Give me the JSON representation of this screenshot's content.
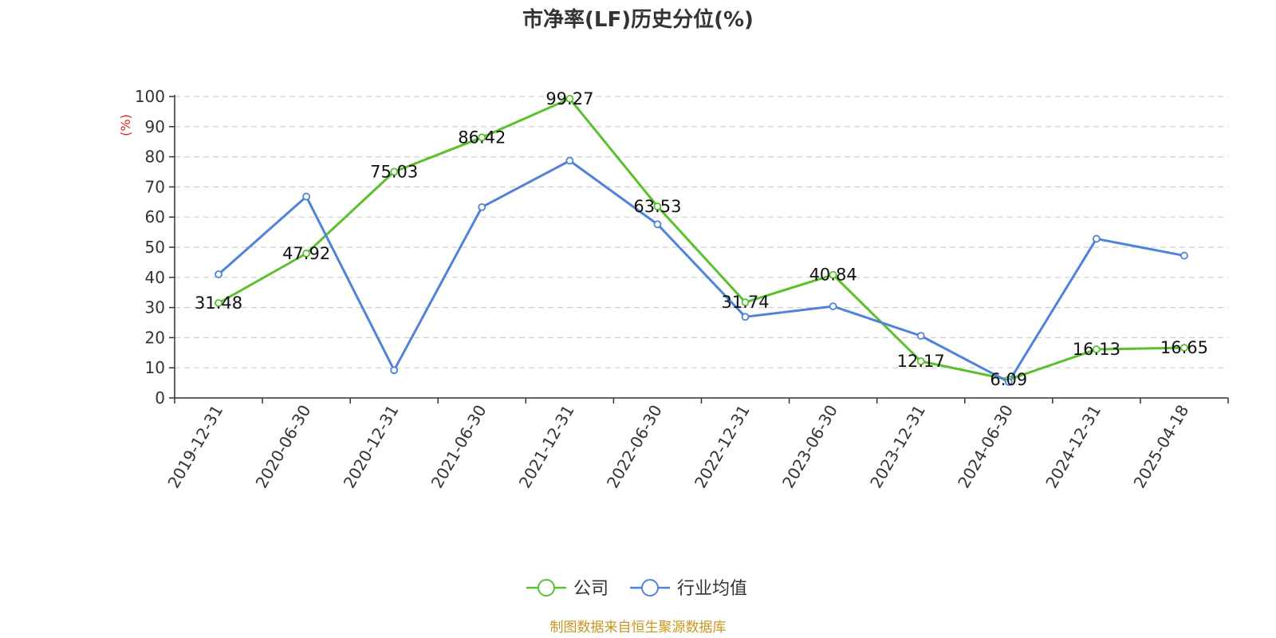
{
  "chart_data": {
    "type": "line",
    "title": "市净率(LF)历史分位(%)",
    "ylabel": "(%)",
    "ylim": [
      0,
      100
    ],
    "yticks": [
      0,
      10,
      20,
      30,
      40,
      50,
      60,
      70,
      80,
      90,
      100
    ],
    "grid": true,
    "legend_position": "bottom-center",
    "categories": [
      "2019-12-31",
      "2020-06-30",
      "2020-12-31",
      "2021-06-30",
      "2021-12-31",
      "2022-06-30",
      "2022-12-31",
      "2023-06-30",
      "2023-12-31",
      "2024-06-30",
      "2024-12-31",
      "2025-04-18"
    ],
    "series": [
      {
        "name": "公司",
        "color": "#5ac02d",
        "values": [
          31.48,
          47.92,
          75.03,
          86.42,
          99.27,
          63.53,
          31.74,
          40.84,
          12.17,
          6.09,
          16.13,
          16.65
        ],
        "data_labels": [
          "31.48",
          "47.92",
          "75.03",
          "86.42",
          "99.27",
          "63.53",
          "31.74",
          "40.84",
          "12.17",
          "6.09",
          "16.13",
          "16.65"
        ]
      },
      {
        "name": "行业均值",
        "color": "#4f82d9",
        "values": [
          41.0,
          66.8,
          9.2,
          63.3,
          78.7,
          57.6,
          26.9,
          30.4,
          20.6,
          5.3,
          52.8,
          47.2
        ]
      }
    ],
    "source": "制图数据来自恒生聚源数据库"
  }
}
